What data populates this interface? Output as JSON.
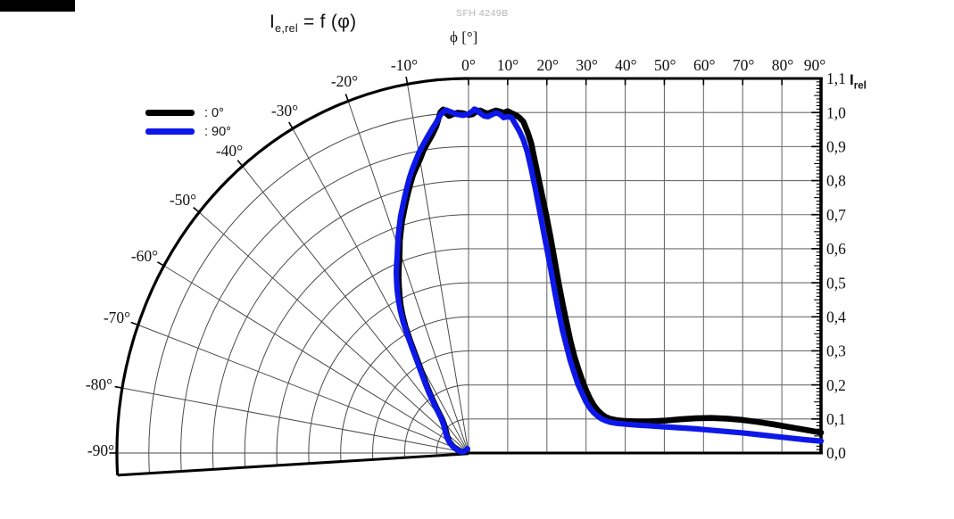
{
  "page": {
    "background": "#ffffff"
  },
  "artifact_bar": {
    "color": "#000000"
  },
  "title": {
    "symbol": "I",
    "subscript": "e,rel",
    "equation": "= f (φ)"
  },
  "watermark": "SFH 4249B",
  "axes": {
    "top_label": "ϕ [°]",
    "top_ticks": [
      "-10°",
      "0°",
      "10°",
      "20°",
      "30°",
      "40°",
      "50°",
      "60°",
      "70°",
      "80°",
      "90°"
    ],
    "polar_labels": [
      "-20°",
      "-30°",
      "-40°",
      "-50°",
      "-60°",
      "-70°",
      "-80°",
      "-90°"
    ],
    "right_label_symbol": "I",
    "right_label_subscript": "rel",
    "right_ticks": [
      "1,1",
      "1,0",
      "0,9",
      "0,8",
      "0,7",
      "0,6",
      "0,5",
      "0,4",
      "0,3",
      "0,2",
      "0,1",
      "0,0"
    ]
  },
  "legend": {
    "items": [
      {
        "label": ": 0°",
        "color": "#000000"
      },
      {
        "label": ": 90°",
        "color": "#0d18e8"
      }
    ]
  },
  "chart_data": {
    "type": "line",
    "title": "I e,rel = f (φ)",
    "subtitle": "SFH 4249B",
    "xlabel": "ϕ [°]",
    "ylabel": "I rel",
    "x_range_deg": [
      -90,
      90
    ],
    "y_range": [
      0.0,
      1.1
    ],
    "grid": "on",
    "layout": "left half polar fan (0° to -90°, radial rings every 0.1 up to 1.1), right half cartesian (0° to 90°, gridlines every 10° and every 0.1)",
    "legend_position": "upper-left",
    "series": [
      {
        "name": "0°",
        "color": "#000000",
        "points": [
          [
            -20,
            0.011
          ],
          [
            -35,
            0.01
          ],
          [
            -55,
            0.011
          ],
          [
            -70,
            0.014
          ],
          [
            -80,
            0.02
          ],
          [
            -79,
            0.026
          ],
          [
            -76,
            0.034
          ],
          [
            -72,
            0.043
          ],
          [
            -68,
            0.052
          ],
          [
            -64,
            0.061
          ],
          [
            -60,
            0.07
          ],
          [
            -56,
            0.078
          ],
          [
            -52,
            0.086
          ],
          [
            -49,
            0.092
          ],
          [
            -46,
            0.1
          ],
          [
            -44,
            0.106
          ],
          [
            -42,
            0.115
          ],
          [
            -40,
            0.127
          ],
          [
            -39,
            0.138
          ],
          [
            -38,
            0.152
          ],
          [
            -37,
            0.168
          ],
          [
            -36,
            0.185
          ],
          [
            -35,
            0.205
          ],
          [
            -34,
            0.225
          ],
          [
            -33,
            0.245
          ],
          [
            -32,
            0.268
          ],
          [
            -31,
            0.295
          ],
          [
            -30,
            0.33
          ],
          [
            -29,
            0.375
          ],
          [
            -28,
            0.42
          ],
          [
            -27,
            0.455
          ],
          [
            -26,
            0.485
          ],
          [
            -25,
            0.51
          ],
          [
            -24,
            0.535
          ],
          [
            -23,
            0.56
          ],
          [
            -22,
            0.583
          ],
          [
            -21,
            0.605
          ],
          [
            -20,
            0.63
          ],
          [
            -19,
            0.66
          ],
          [
            -18,
            0.685
          ],
          [
            -17,
            0.712
          ],
          [
            -16,
            0.735
          ],
          [
            -15,
            0.76
          ],
          [
            -14,
            0.785
          ],
          [
            -13,
            0.81
          ],
          [
            -12,
            0.835
          ],
          [
            -11,
            0.855
          ],
          [
            -10,
            0.875
          ],
          [
            -9,
            0.9
          ],
          [
            -8,
            0.92
          ],
          [
            -7,
            0.94
          ],
          [
            -6,
            0.965
          ],
          [
            -5.5,
            0.985
          ],
          [
            -5,
            1.005
          ],
          [
            -4.5,
            1.012
          ],
          [
            -4,
            1.0
          ],
          [
            -3.5,
            0.992
          ],
          [
            -3,
            0.995
          ],
          [
            -2,
            1.0
          ],
          [
            -1,
            0.998
          ],
          [
            0,
            0.993
          ],
          [
            1,
            0.995
          ],
          [
            2,
            1.003
          ],
          [
            3,
            1.006
          ],
          [
            4,
            1.0
          ],
          [
            5,
            0.997
          ],
          [
            6,
            1.002
          ],
          [
            7,
            1.006
          ],
          [
            8,
            1.003
          ],
          [
            9,
            0.999
          ],
          [
            10,
            1.004
          ],
          [
            11,
            0.998
          ],
          [
            12,
            0.993
          ],
          [
            13,
            0.985
          ],
          [
            14,
            0.973
          ],
          [
            15,
            0.945
          ],
          [
            16,
            0.91
          ],
          [
            17,
            0.855
          ],
          [
            18,
            0.8
          ],
          [
            19,
            0.745
          ],
          [
            20,
            0.69
          ],
          [
            21,
            0.63
          ],
          [
            22,
            0.565
          ],
          [
            23,
            0.5
          ],
          [
            24,
            0.44
          ],
          [
            25,
            0.385
          ],
          [
            26,
            0.33
          ],
          [
            27,
            0.285
          ],
          [
            28,
            0.248
          ],
          [
            29,
            0.215
          ],
          [
            30,
            0.185
          ],
          [
            31,
            0.16
          ],
          [
            32,
            0.14
          ],
          [
            33,
            0.125
          ],
          [
            34,
            0.114
          ],
          [
            35,
            0.106
          ],
          [
            36,
            0.101
          ],
          [
            38,
            0.096
          ],
          [
            40,
            0.094
          ],
          [
            43,
            0.093
          ],
          [
            46,
            0.093
          ],
          [
            50,
            0.095
          ],
          [
            54,
            0.099
          ],
          [
            58,
            0.102
          ],
          [
            62,
            0.103
          ],
          [
            66,
            0.101
          ],
          [
            70,
            0.097
          ],
          [
            74,
            0.091
          ],
          [
            78,
            0.084
          ],
          [
            82,
            0.076
          ],
          [
            86,
            0.068
          ],
          [
            90,
            0.06
          ]
        ]
      },
      {
        "name": "90°",
        "color": "#0d18e8",
        "points": [
          [
            -15,
            0.013
          ],
          [
            -35,
            0.011
          ],
          [
            -55,
            0.012
          ],
          [
            -72,
            0.015
          ],
          [
            -81,
            0.021
          ],
          [
            -79,
            0.028
          ],
          [
            -76,
            0.036
          ],
          [
            -72,
            0.045
          ],
          [
            -68,
            0.054
          ],
          [
            -64,
            0.063
          ],
          [
            -60,
            0.072
          ],
          [
            -56,
            0.081
          ],
          [
            -52,
            0.089
          ],
          [
            -49,
            0.096
          ],
          [
            -46,
            0.104
          ],
          [
            -44,
            0.111
          ],
          [
            -42,
            0.12
          ],
          [
            -40,
            0.133
          ],
          [
            -39,
            0.145
          ],
          [
            -38,
            0.159
          ],
          [
            -37,
            0.176
          ],
          [
            -36,
            0.194
          ],
          [
            -35,
            0.214
          ],
          [
            -34,
            0.235
          ],
          [
            -33,
            0.256
          ],
          [
            -32,
            0.28
          ],
          [
            -31,
            0.308
          ],
          [
            -30,
            0.345
          ],
          [
            -29,
            0.39
          ],
          [
            -28,
            0.435
          ],
          [
            -27,
            0.47
          ],
          [
            -26,
            0.5
          ],
          [
            -25,
            0.528
          ],
          [
            -24,
            0.553
          ],
          [
            -23,
            0.578
          ],
          [
            -22,
            0.6
          ],
          [
            -21,
            0.622
          ],
          [
            -20,
            0.648
          ],
          [
            -19,
            0.675
          ],
          [
            -18,
            0.7
          ],
          [
            -17,
            0.727
          ],
          [
            -16,
            0.75
          ],
          [
            -15,
            0.775
          ],
          [
            -14,
            0.8
          ],
          [
            -13,
            0.826
          ],
          [
            -12,
            0.85
          ],
          [
            -11,
            0.872
          ],
          [
            -10,
            0.895
          ],
          [
            -9,
            0.915
          ],
          [
            -8,
            0.935
          ],
          [
            -7,
            0.955
          ],
          [
            -6,
            0.975
          ],
          [
            -5,
            0.998
          ],
          [
            -4.5,
            1.005
          ],
          [
            -4,
            1.01
          ],
          [
            -3,
            1.002
          ],
          [
            -2,
            0.995
          ],
          [
            -1,
            0.992
          ],
          [
            0,
            0.996
          ],
          [
            1,
            1.004
          ],
          [
            1.5,
            1.01
          ],
          [
            2,
            1.008
          ],
          [
            3,
            0.998
          ],
          [
            4,
            0.99
          ],
          [
            5,
            0.988
          ],
          [
            6,
            0.994
          ],
          [
            7,
            0.999
          ],
          [
            8,
            0.995
          ],
          [
            9,
            0.985
          ],
          [
            10,
            0.988
          ],
          [
            11,
            0.985
          ],
          [
            12,
            0.965
          ],
          [
            13,
            0.945
          ],
          [
            14,
            0.92
          ],
          [
            15,
            0.885
          ],
          [
            16,
            0.835
          ],
          [
            17,
            0.78
          ],
          [
            18,
            0.72
          ],
          [
            19,
            0.66
          ],
          [
            20,
            0.6
          ],
          [
            21,
            0.54
          ],
          [
            22,
            0.475
          ],
          [
            23,
            0.415
          ],
          [
            24,
            0.36
          ],
          [
            25,
            0.315
          ],
          [
            26,
            0.27
          ],
          [
            27,
            0.235
          ],
          [
            28,
            0.2
          ],
          [
            29,
            0.175
          ],
          [
            30,
            0.15
          ],
          [
            31,
            0.132
          ],
          [
            32,
            0.118
          ],
          [
            33,
            0.108
          ],
          [
            34,
            0.1
          ],
          [
            35,
            0.095
          ],
          [
            36,
            0.091
          ],
          [
            38,
            0.087
          ],
          [
            40,
            0.085
          ],
          [
            43,
            0.082
          ],
          [
            46,
            0.08
          ],
          [
            50,
            0.077
          ],
          [
            54,
            0.074
          ],
          [
            58,
            0.071
          ],
          [
            62,
            0.067
          ],
          [
            66,
            0.063
          ],
          [
            70,
            0.059
          ],
          [
            74,
            0.054
          ],
          [
            78,
            0.049
          ],
          [
            82,
            0.044
          ],
          [
            86,
            0.039
          ],
          [
            90,
            0.035
          ]
        ]
      }
    ]
  }
}
